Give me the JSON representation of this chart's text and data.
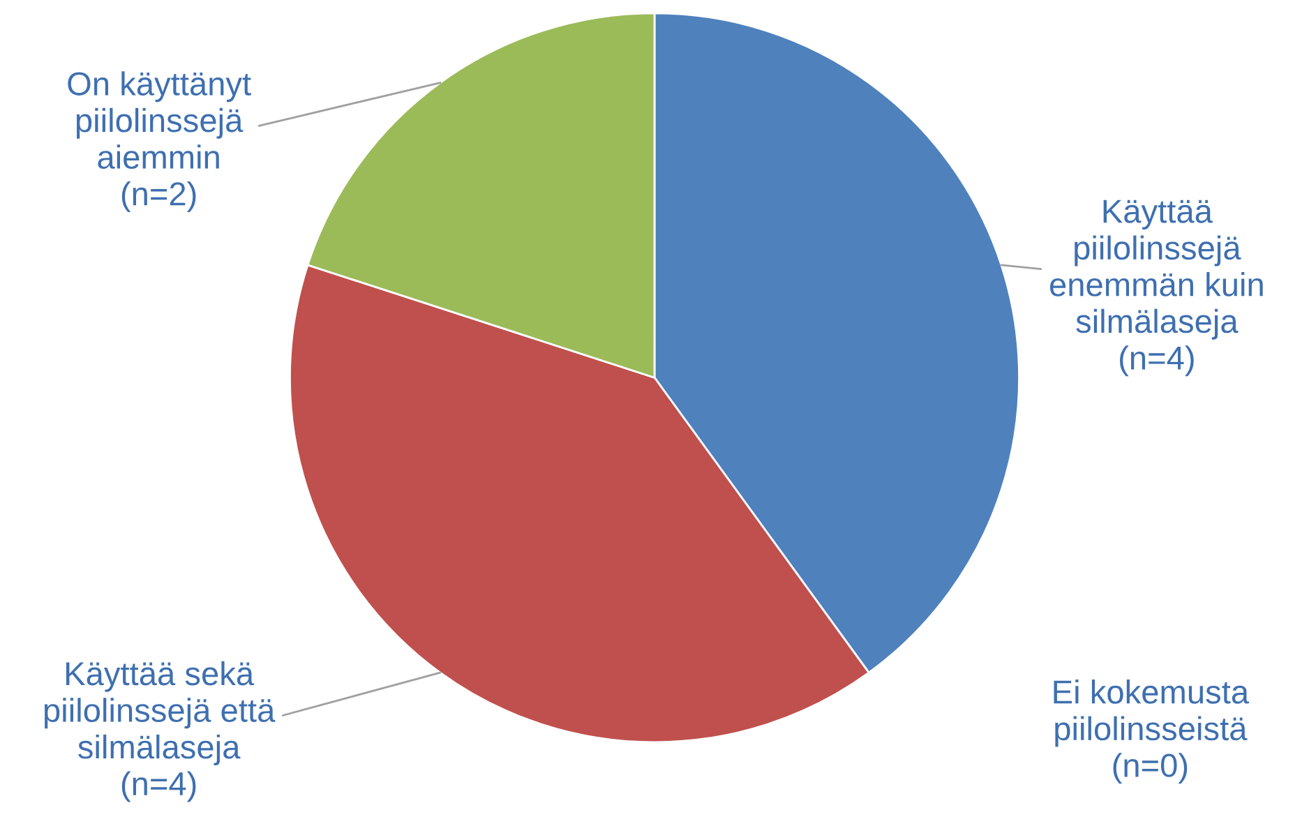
{
  "chart_data": {
    "type": "pie",
    "categories": [
      "Käyttää\npiilolinssejä\nenemmän kuin\nsilmälaseja",
      "Ei kokemusta\npiilolinsseistä",
      "Käyttää sekä\npiilolinssejä että\nsilmälaseja",
      "On käyttänyt\npiilolinssejä\naiemmin"
    ],
    "values": [
      4,
      0,
      4,
      2
    ],
    "value_labels": [
      "(n=4)",
      "(n=0)",
      "(n=4)",
      "(n=2)"
    ],
    "colors": [
      "#4f81bd",
      "#4f81bd",
      "#c0504d",
      "#9bbb59"
    ],
    "legend": false
  }
}
